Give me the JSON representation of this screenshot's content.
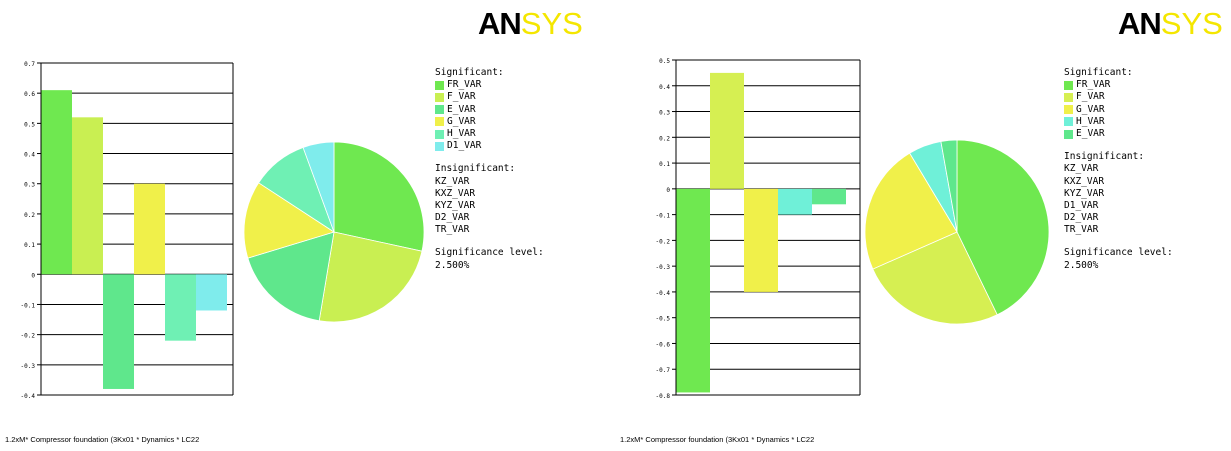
{
  "logo": {
    "part1": "AN",
    "part2": "SYS"
  },
  "panels": [
    {
      "legend": {
        "significant_title": "Significant:",
        "significant": [
          {
            "label": "FR_VAR",
            "color": "#6fe850"
          },
          {
            "label": "F_VAR",
            "color": "#c9ef52"
          },
          {
            "label": "E_VAR",
            "color": "#5fe78c"
          },
          {
            "label": "G_VAR",
            "color": "#f0f04a"
          },
          {
            "label": "H_VAR",
            "color": "#6ff0b4"
          },
          {
            "label": "D1_VAR",
            "color": "#7fecec"
          }
        ],
        "insignificant_title": "Insignificant:",
        "insignificant": [
          "KZ_VAR",
          "KXZ_VAR",
          "KYZ_VAR",
          "D2_VAR",
          "TR_VAR"
        ],
        "level_title": "Significance level:",
        "level_value": "2.500%"
      },
      "footer": "1.2xM* Compressor foundation (3Kx01 * Dynamics * LC22"
    },
    {
      "legend": {
        "significant_title": "Significant:",
        "significant": [
          {
            "label": "FR_VAR",
            "color": "#6fe850"
          },
          {
            "label": "F_VAR",
            "color": "#d6ef52"
          },
          {
            "label": "G_VAR",
            "color": "#f0f04a"
          },
          {
            "label": "H_VAR",
            "color": "#6ff0d8"
          },
          {
            "label": "E_VAR",
            "color": "#5fe78c"
          }
        ],
        "insignificant_title": "Insignificant:",
        "insignificant": [
          "KZ_VAR",
          "KXZ_VAR",
          "KYZ_VAR",
          "D1_VAR",
          "D2_VAR",
          "TR_VAR"
        ],
        "level_title": "Significance level:",
        "level_value": "2.500%"
      },
      "footer": "1.2xM* Compressor foundation (3Kx01 * Dynamics * LC22"
    }
  ],
  "chart_data": [
    {
      "type": "bar",
      "ylim": [
        -0.4,
        0.7
      ],
      "ytick_labels": [
        "0.7",
        "0.6",
        "0.5",
        "0.4",
        "0.3",
        "0.2",
        "0.1",
        "0",
        "-0.1",
        "-0.2",
        "-0.3",
        "-0.4"
      ],
      "bars": [
        {
          "name": "FR_VAR",
          "value": 0.61,
          "color": "#6fe850"
        },
        {
          "name": "F_VAR",
          "value": 0.52,
          "color": "#c9ef52"
        },
        {
          "name": "E_VAR",
          "value": -0.38,
          "color": "#5fe78c"
        },
        {
          "name": "G_VAR",
          "value": 0.3,
          "color": "#f0f04a"
        },
        {
          "name": "H_VAR",
          "value": -0.22,
          "color": "#6ff0b4"
        },
        {
          "name": "D1_VAR",
          "value": -0.12,
          "color": "#7fecec"
        }
      ],
      "pie": [
        {
          "name": "FR_VAR",
          "value": 0.27,
          "color": "#6fe850"
        },
        {
          "name": "F_VAR",
          "value": 0.23,
          "color": "#c9ef52"
        },
        {
          "name": "E_VAR",
          "value": 0.168,
          "color": "#5fe78c"
        },
        {
          "name": "G_VAR",
          "value": 0.132,
          "color": "#f0f04a"
        },
        {
          "name": "H_VAR",
          "value": 0.097,
          "color": "#6ff0b4"
        },
        {
          "name": "D1_VAR",
          "value": 0.053,
          "color": "#7fecec"
        }
      ]
    },
    {
      "type": "bar",
      "ylim": [
        -0.8,
        0.5
      ],
      "ytick_labels": [
        "0.5",
        "0.4",
        "0.3",
        "0.2",
        "0.1",
        "0",
        "-0.1",
        "-0.2",
        "-0.3",
        "-0.4",
        "-0.5",
        "-0.6",
        "-0.7",
        "-0.8"
      ],
      "bars": [
        {
          "name": "FR_VAR",
          "value": -0.79,
          "color": "#6fe850"
        },
        {
          "name": "F_VAR",
          "value": 0.45,
          "color": "#d6ef52"
        },
        {
          "name": "G_VAR",
          "value": -0.4,
          "color": "#f0f04a"
        },
        {
          "name": "H_VAR",
          "value": -0.1,
          "color": "#6ff0d8"
        },
        {
          "name": "E_VAR",
          "value": -0.06,
          "color": "#5fe78c"
        }
      ],
      "pie": [
        {
          "name": "FR_VAR",
          "value": 0.428,
          "color": "#6fe850"
        },
        {
          "name": "F_VAR",
          "value": 0.256,
          "color": "#d6ef52"
        },
        {
          "name": "G_VAR",
          "value": 0.23,
          "color": "#f0f04a"
        },
        {
          "name": "H_VAR",
          "value": 0.058,
          "color": "#6ff0d8"
        },
        {
          "name": "E_VAR",
          "value": 0.028,
          "color": "#5fe78c"
        }
      ]
    }
  ]
}
